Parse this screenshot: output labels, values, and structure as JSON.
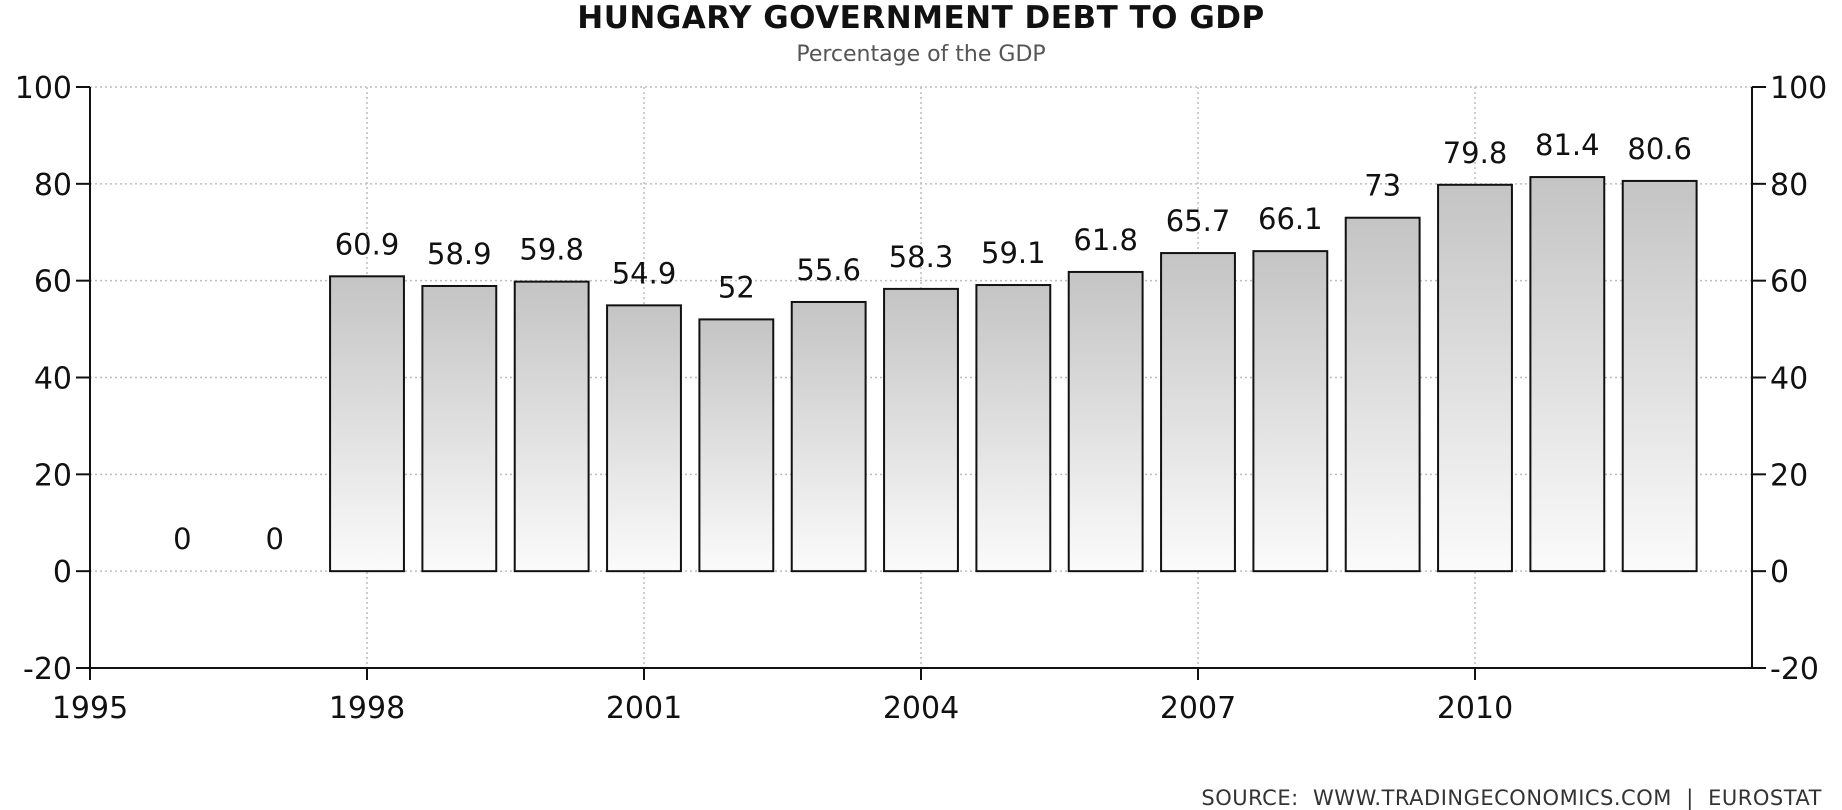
{
  "chart_data": {
    "type": "bar",
    "title": "HUNGARY GOVERNMENT DEBT TO GDP",
    "subtitle": "Percentage of the GDP",
    "categories": [
      "1996",
      "1997",
      "1998",
      "1999",
      "2000",
      "2001",
      "2002",
      "2003",
      "2004",
      "2005",
      "2006",
      "2007",
      "2008",
      "2009",
      "2010",
      "2011",
      "2012"
    ],
    "values": [
      0,
      0,
      60.9,
      58.9,
      59.8,
      54.9,
      52,
      55.6,
      58.3,
      59.1,
      61.8,
      65.7,
      66.1,
      73,
      79.8,
      81.4,
      80.6
    ],
    "data_labels": [
      "0",
      "0",
      "60.9",
      "58.9",
      "59.8",
      "54.9",
      "52",
      "55.6",
      "58.3",
      "59.1",
      "61.8",
      "65.7",
      "66.1",
      "73",
      "79.8",
      "81.4",
      "80.6"
    ],
    "x_ticks": [
      "1995",
      "1998",
      "2001",
      "2004",
      "2007",
      "2010"
    ],
    "x_tick_values": [
      1995,
      1998,
      2001,
      2004,
      2007,
      2010
    ],
    "xlim": [
      1995,
      2013
    ],
    "y_ticks": [
      "100",
      "80",
      "60",
      "40",
      "20",
      "0",
      "-20"
    ],
    "y_tick_values": [
      100,
      80,
      60,
      40,
      20,
      0,
      -20
    ],
    "ylim": [
      -20,
      100
    ],
    "grid": true,
    "y_axis_both_sides": true,
    "bar_color": "#e6e6e6",
    "bar_gradient_top": "#c4c4c4",
    "bar_gradient_bottom": "#fbfbfb",
    "bar_border_color": "#111111"
  },
  "source_text": "SOURCE:  WWW.TRADINGECONOMICS.COM  |  EUROSTAT"
}
